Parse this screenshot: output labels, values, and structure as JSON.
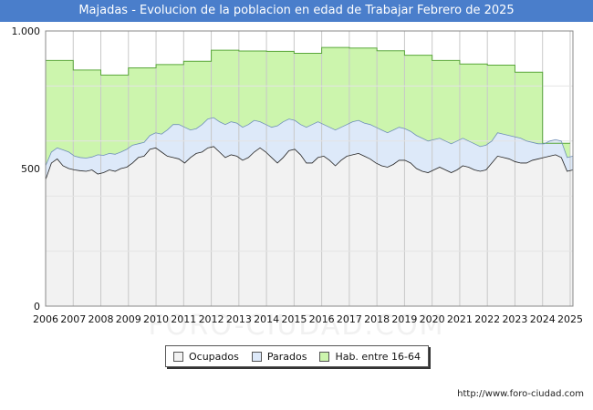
{
  "header": {
    "title": "Majadas - Evolucion de la poblacion en edad de Trabajar Febrero de 2025"
  },
  "watermark": "FORO-CIUDAD.COM",
  "footer": {
    "source": "http://www.foro-ciudad.com"
  },
  "legend": {
    "items": [
      {
        "label": "Ocupados",
        "color": "#f2f2f2"
      },
      {
        "label": "Parados",
        "color": "#dde9f9"
      },
      {
        "label": "Hab. entre 16-64",
        "color": "#ccf5ad"
      }
    ]
  },
  "chart_data": {
    "type": "area",
    "title": "Majadas - Evolucion de la poblacion en edad de Trabajar Febrero de 2025",
    "xlabel": "",
    "ylabel": "",
    "x_ticks": [
      "2006",
      "2007",
      "2008",
      "2009",
      "2010",
      "2011",
      "2012",
      "2013",
      "2014",
      "2015",
      "2016",
      "2017",
      "2018",
      "2019",
      "2020",
      "2021",
      "2022",
      "2023",
      "2024",
      "2025"
    ],
    "y_ticks": [
      0,
      500,
      1000
    ],
    "y_tick_labels": [
      "0",
      "500",
      "1.000"
    ],
    "ylim": [
      0,
      1000
    ],
    "xlim": [
      2006,
      2025.1
    ],
    "grid": true,
    "legend_position": "bottom",
    "series": [
      {
        "name": "Hab. entre 16-64",
        "color": "#ccf5ad",
        "line_color": "#59a73a",
        "step": true,
        "values": [
          893,
          858,
          840,
          866,
          878,
          890,
          930,
          927,
          926,
          919,
          940,
          938,
          928,
          912,
          893,
          880,
          876,
          850,
          592
        ],
        "end_value": 592
      },
      {
        "name": "Parados",
        "color": "#dde9f9",
        "line_color": "#6f8fb8",
        "x_start": 2006,
        "x_end": 2025.1,
        "values": [
          510,
          560,
          575,
          568,
          560,
          545,
          540,
          538,
          542,
          550,
          548,
          555,
          552,
          560,
          570,
          585,
          590,
          595,
          620,
          630,
          625,
          640,
          660,
          660,
          650,
          640,
          645,
          660,
          680,
          685,
          670,
          660,
          670,
          665,
          650,
          660,
          675,
          670,
          660,
          650,
          655,
          670,
          680,
          675,
          660,
          650,
          660,
          670,
          660,
          650,
          640,
          650,
          660,
          670,
          675,
          665,
          660,
          650,
          640,
          630,
          640,
          650,
          645,
          635,
          620,
          610,
          600,
          605,
          610,
          600,
          590,
          600,
          610,
          600,
          590,
          580,
          585,
          600,
          630,
          625,
          620,
          615,
          610,
          600,
          595,
          590,
          590,
          600,
          605,
          600,
          540,
          545
        ]
      },
      {
        "name": "Ocupados",
        "color": "#f2f2f2",
        "line_color": "#222222",
        "x_start": 2006,
        "x_end": 2025.1,
        "values": [
          460,
          520,
          535,
          510,
          500,
          495,
          492,
          490,
          495,
          480,
          485,
          495,
          490,
          500,
          505,
          520,
          540,
          545,
          570,
          575,
          560,
          545,
          540,
          535,
          520,
          540,
          555,
          560,
          575,
          580,
          560,
          540,
          550,
          545,
          530,
          540,
          560,
          575,
          560,
          540,
          520,
          540,
          565,
          570,
          550,
          520,
          520,
          540,
          545,
          530,
          510,
          530,
          545,
          550,
          555,
          545,
          535,
          520,
          510,
          505,
          515,
          530,
          530,
          520,
          500,
          490,
          485,
          495,
          505,
          495,
          485,
          495,
          510,
          505,
          495,
          490,
          495,
          520,
          545,
          540,
          535,
          525,
          520,
          520,
          530,
          535,
          540,
          545,
          550,
          540,
          490,
          495
        ]
      }
    ]
  }
}
